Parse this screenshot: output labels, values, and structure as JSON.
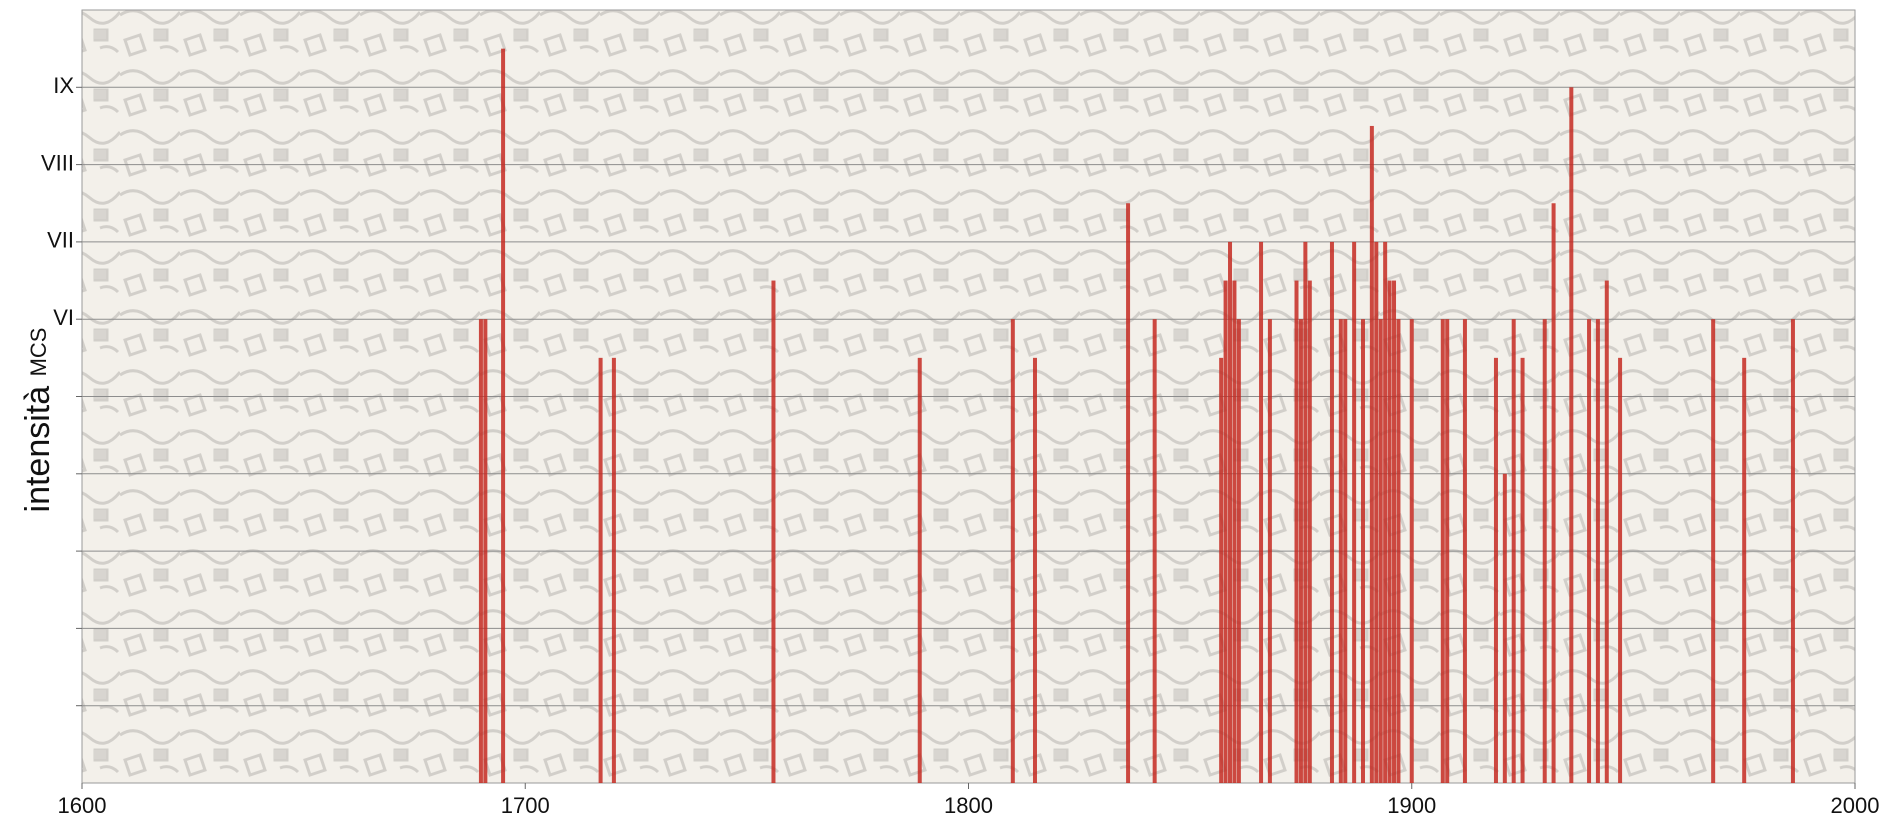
{
  "chart_data": {
    "type": "bar",
    "ylabel": "intensità",
    "ylabel_unit": "MCS",
    "color": "#c42a22",
    "grid": true,
    "xlim": [
      1600,
      2000
    ],
    "xticks": [
      1600,
      1700,
      1800,
      1900,
      2000
    ],
    "ylim": [
      0,
      10
    ],
    "yticks": [
      {
        "value": 6,
        "label": "VI"
      },
      {
        "value": 7,
        "label": "VII"
      },
      {
        "value": 8,
        "label": "VIII"
      },
      {
        "value": 9,
        "label": "IX"
      }
    ],
    "minor_yticks": [
      1,
      2,
      3,
      4,
      5
    ],
    "x": [
      1690,
      1691,
      1695,
      1717,
      1720,
      1756,
      1789,
      1810,
      1815,
      1836,
      1842,
      1857,
      1858,
      1859,
      1860,
      1861,
      1866,
      1868,
      1874,
      1875,
      1876,
      1877,
      1882,
      1884,
      1885,
      1887,
      1889,
      1891,
      1892,
      1893,
      1894,
      1895,
      1896,
      1897,
      1900,
      1907,
      1908,
      1912,
      1919,
      1921,
      1923,
      1925,
      1930,
      1932,
      1936,
      1940,
      1942,
      1944,
      1947,
      1968,
      1975,
      1986
    ],
    "values": [
      6,
      6,
      9.5,
      5.5,
      5.5,
      6.5,
      5.5,
      6,
      5.5,
      7.5,
      6,
      5.5,
      6.5,
      7,
      6.5,
      6,
      7,
      6,
      6.5,
      6,
      7,
      6.5,
      7,
      6,
      6,
      7,
      6,
      8.5,
      7,
      6,
      7,
      6.5,
      6.5,
      6,
      6,
      6,
      6,
      6,
      5.5,
      4,
      6,
      5.5,
      6,
      7.5,
      9,
      6,
      6,
      6.5,
      5.5,
      6,
      5.5,
      6
    ]
  }
}
